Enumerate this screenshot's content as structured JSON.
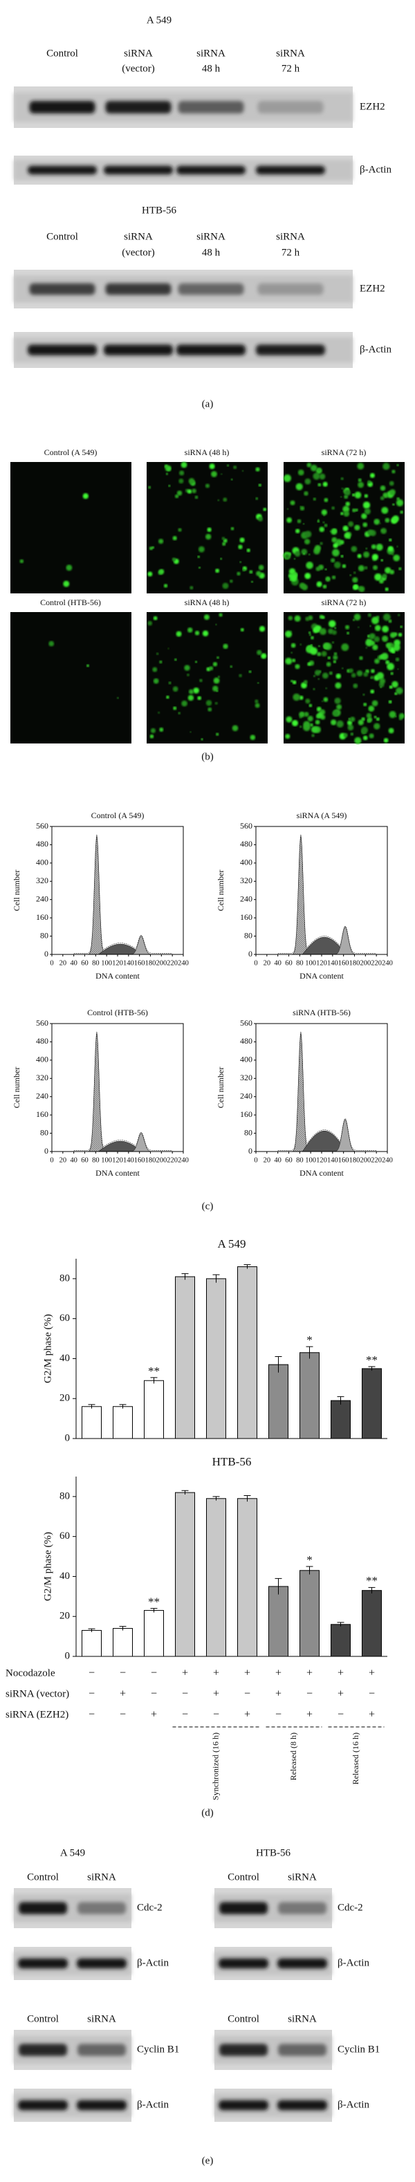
{
  "panel_a": {
    "label": "(a)",
    "blots": [
      {
        "title": "A 549",
        "lanes": [
          [
            "Control"
          ],
          [
            "siRNA",
            "(vector)"
          ],
          [
            "siRNA",
            "48 h"
          ],
          [
            "siRNA",
            "72 h"
          ]
        ],
        "bands": [
          "EZH2",
          "β-Actin"
        ]
      },
      {
        "title": "HTB-56",
        "lanes": [
          [
            "Control"
          ],
          [
            "siRNA",
            "(vector)"
          ],
          [
            "siRNA",
            "48 h"
          ],
          [
            "siRNA",
            "72 h"
          ]
        ],
        "bands": [
          "EZH2",
          "β-Actin"
        ]
      }
    ]
  },
  "panel_b": {
    "label": "(b)",
    "rows": [
      [
        "Control (A 549)",
        "siRNA (48 h)",
        "siRNA (72 h)"
      ],
      [
        "Control (HTB-56)",
        "siRNA (48 h)",
        "siRNA (72 h)"
      ]
    ]
  },
  "panel_c": {
    "label": "(c)",
    "titles": [
      "Control (A 549)",
      "siRNA (A 549)",
      "Control (HTB-56)",
      "siRNA (HTB-56)"
    ],
    "xlabel": "DNA content",
    "ylabel": "Cell number",
    "xlim": [
      0,
      240
    ],
    "xticks": [
      0,
      20,
      40,
      60,
      80,
      100,
      120,
      140,
      160,
      180,
      200,
      220,
      240
    ],
    "ylim": [
      0,
      560
    ],
    "yticks": [
      0,
      80,
      160,
      240,
      320,
      400,
      480,
      560
    ]
  },
  "chart_data": [
    {
      "type": "bar",
      "title": "A 549",
      "ylabel": "G2/M phase (%)",
      "ylim": [
        0,
        90
      ],
      "yticks": [
        0,
        20,
        40,
        60,
        80
      ],
      "values": [
        16,
        16,
        29,
        81,
        80,
        86,
        37,
        43,
        19,
        35
      ],
      "errors": [
        1,
        1,
        1.5,
        1.5,
        2,
        1,
        4,
        3,
        2,
        1
      ],
      "significance": [
        null,
        null,
        "**",
        null,
        null,
        null,
        null,
        "*",
        null,
        "**"
      ],
      "colors": [
        "#ffffff",
        "#ffffff",
        "#ffffff",
        "#c8c8c8",
        "#c8c8c8",
        "#c8c8c8",
        "#8c8c8c",
        "#8c8c8c",
        "#444444",
        "#444444"
      ]
    },
    {
      "type": "bar",
      "title": "HTB-56",
      "ylabel": "G2/M phase (%)",
      "ylim": [
        0,
        90
      ],
      "yticks": [
        0,
        20,
        40,
        60,
        80
      ],
      "values": [
        13,
        14,
        23,
        82,
        79,
        79,
        35,
        43,
        16,
        33
      ],
      "errors": [
        0.8,
        1,
        1,
        1,
        1,
        1.5,
        4,
        2,
        1,
        1.5
      ],
      "significance": [
        null,
        null,
        "**",
        null,
        null,
        null,
        null,
        "*",
        null,
        "**"
      ],
      "colors": [
        "#ffffff",
        "#ffffff",
        "#ffffff",
        "#c8c8c8",
        "#c8c8c8",
        "#c8c8c8",
        "#8c8c8c",
        "#8c8c8c",
        "#444444",
        "#444444"
      ]
    }
  ],
  "panel_d": {
    "label": "(d)",
    "conditions": [
      {
        "label": "Nocodazole",
        "signs": [
          "−",
          "−",
          "−",
          "+",
          "+",
          "+",
          "+",
          "+",
          "+",
          "+"
        ]
      },
      {
        "label": "siRNA (vector)",
        "signs": [
          "−",
          "+",
          "−",
          "−",
          "+",
          "−",
          "+",
          "−",
          "+",
          "−"
        ]
      },
      {
        "label": "siRNA (EZH2)",
        "signs": [
          "−",
          "−",
          "+",
          "−",
          "−",
          "+",
          "−",
          "+",
          "−",
          "+"
        ]
      }
    ],
    "groups": [
      "Synchronized (16 h)",
      "Released (8 h)",
      "Released (16 h)"
    ]
  },
  "panel_e": {
    "label": "(e)",
    "blots": [
      {
        "title": "A 549",
        "rows": [
          {
            "lanes": [
              "Control",
              "siRNA"
            ],
            "bands": [
              "Cdc-2",
              "β-Actin"
            ]
          },
          {
            "lanes": [
              "Control",
              "siRNA"
            ],
            "bands": [
              "Cyclin B1",
              "β-Actin"
            ]
          }
        ]
      },
      {
        "title": "HTB-56",
        "rows": [
          {
            "lanes": [
              "Control",
              "siRNA"
            ],
            "bands": [
              "Cdc-2",
              "β-Actin"
            ]
          },
          {
            "lanes": [
              "Control",
              "siRNA"
            ],
            "bands": [
              "Cyclin B1",
              "β-Actin"
            ]
          }
        ]
      }
    ]
  }
}
